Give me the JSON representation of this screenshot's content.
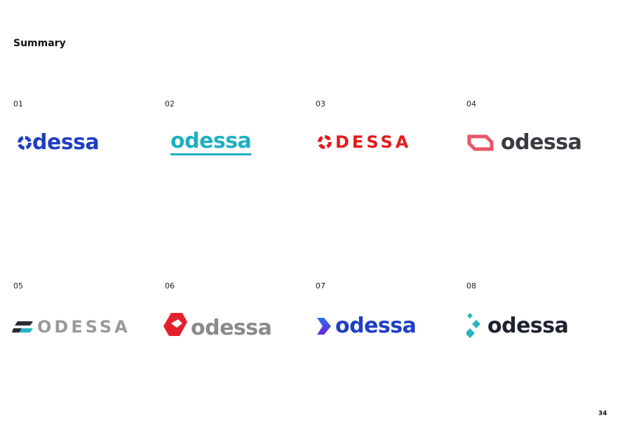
{
  "header": {
    "title": "Summary"
  },
  "logos": [
    {
      "number": "01",
      "wordmark": "dessa"
    },
    {
      "number": "02",
      "wordmark": "odessa"
    },
    {
      "number": "03",
      "wordmark": "DESSA"
    },
    {
      "number": "04",
      "wordmark": "odessa"
    },
    {
      "number": "05",
      "wordmark": "ODESSA"
    },
    {
      "number": "06",
      "wordmark": "odessa"
    },
    {
      "number": "07",
      "wordmark": "odessa"
    },
    {
      "number": "08",
      "wordmark": "odessa"
    }
  ],
  "footer": {
    "page_number": "34"
  }
}
